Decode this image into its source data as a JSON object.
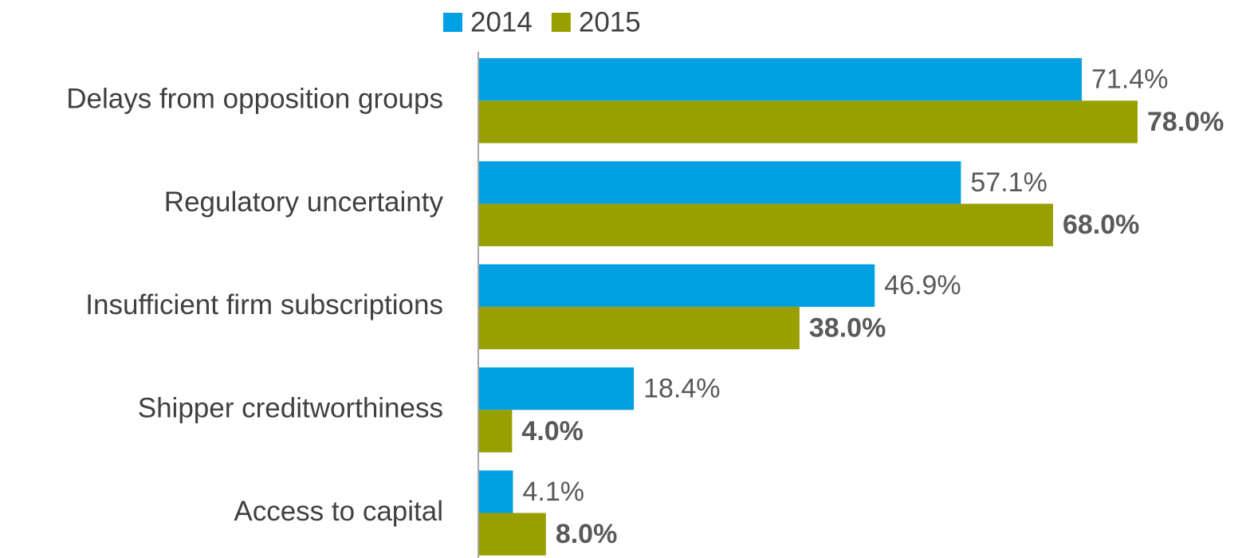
{
  "chart_data": {
    "type": "bar",
    "orientation": "horizontal",
    "categories": [
      "Delays from opposition groups",
      "Regulatory uncertainty",
      "Insufficient firm subscriptions",
      "Shipper creditworthiness",
      "Access to capital"
    ],
    "series": [
      {
        "name": "2014",
        "color": "#00a0e3",
        "values": [
          71.4,
          57.1,
          46.9,
          18.4,
          4.1
        ],
        "value_labels": [
          "71.4%",
          "57.1%",
          "46.9%",
          "18.4%",
          "4.1%"
        ]
      },
      {
        "name": "2015",
        "color": "#98a000",
        "values": [
          78.0,
          68.0,
          38.0,
          4.0,
          8.0
        ],
        "value_labels": [
          "78.0%",
          "68.0%",
          "38.0%",
          "4.0%",
          "8.0%"
        ]
      }
    ],
    "legend": "top"
  }
}
